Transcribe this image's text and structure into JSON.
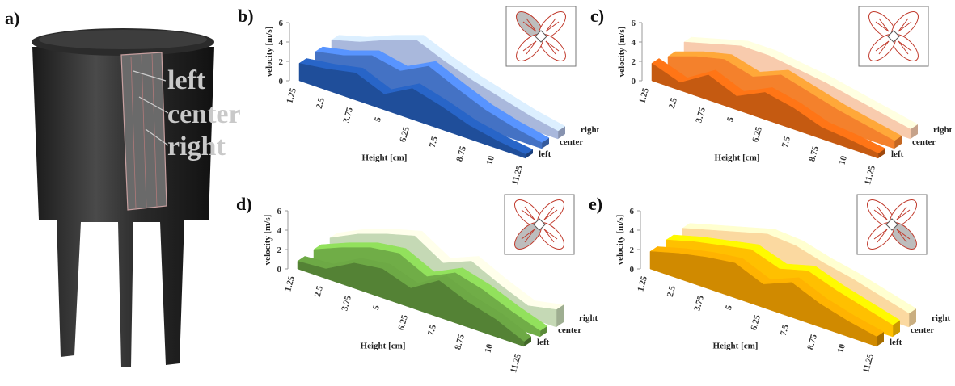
{
  "illustration": {
    "label": "a)",
    "callouts": [
      "left",
      "center",
      "right"
    ]
  },
  "chart_data": [
    {
      "type": "ribbon",
      "title": "b)",
      "ylabel": "velocity [m/s]",
      "xlabel": "Height [cm]",
      "categories": [
        "1.25",
        "2.5",
        "3.75",
        "5",
        "6.25",
        "7.5",
        "8.75",
        "10",
        "11.25"
      ],
      "ylim": [
        0,
        6
      ],
      "yticks": [
        0,
        2,
        4,
        6
      ],
      "series": [
        {
          "name": "left",
          "color": "#1f4e9a",
          "values": [
            1.8,
            2.2,
            2.8,
            1.6,
            3.2,
            2.4,
            1.4,
            0.8,
            0.4
          ]
        },
        {
          "name": "center",
          "color": "#4472c4",
          "values": [
            2.0,
            2.6,
            3.6,
            3.0,
            4.5,
            3.2,
            2.0,
            1.2,
            0.6
          ]
        },
        {
          "name": "right",
          "color": "#a9b8dc",
          "values": [
            2.2,
            3.0,
            4.2,
            5.2,
            4.0,
            3.0,
            2.2,
            1.4,
            0.8
          ]
        }
      ]
    },
    {
      "type": "ribbon",
      "title": "c)",
      "ylabel": "velocity [m/s]",
      "xlabel": "Height [cm]",
      "categories": [
        "1.25",
        "2.5",
        "3.75",
        "5",
        "6.25",
        "7.5",
        "8.75",
        "10",
        "11.25"
      ],
      "ylim": [
        0,
        6
      ],
      "yticks": [
        0,
        2,
        4,
        6
      ],
      "series": [
        {
          "name": "left",
          "color": "#c55a11",
          "values": [
            1.8,
            0.8,
            2.6,
            1.4,
            2.8,
            2.2,
            1.2,
            0.9,
            0.5
          ]
        },
        {
          "name": "center",
          "color": "#f4812c",
          "values": [
            1.5,
            2.5,
            3.2,
            2.4,
            3.6,
            2.8,
            2.0,
            1.4,
            0.8
          ]
        },
        {
          "name": "right",
          "color": "#f8cbad",
          "values": [
            2.0,
            2.8,
            3.6,
            3.6,
            3.2,
            2.8,
            2.2,
            1.6,
            1.0
          ]
        }
      ]
    },
    {
      "type": "ribbon",
      "title": "d)",
      "ylabel": "velocity [m/s]",
      "xlabel": "Height [cm]",
      "categories": [
        "1.25",
        "2.5",
        "3.75",
        "5",
        "6.25",
        "7.5",
        "8.75",
        "10",
        "11.25"
      ],
      "ylim": [
        0,
        6
      ],
      "yticks": [
        0,
        2,
        4,
        6
      ],
      "series": [
        {
          "name": "left",
          "color": "#548235",
          "values": [
            0.8,
            1.0,
            2.6,
            3.0,
            2.0,
            3.8,
            2.6,
            1.8,
            0.5
          ]
        },
        {
          "name": "center",
          "color": "#70ad47",
          "values": [
            1.0,
            2.2,
            3.2,
            3.6,
            2.2,
            3.6,
            2.8,
            1.6,
            0.6
          ]
        },
        {
          "name": "right",
          "color": "#c5d9b5",
          "values": [
            1.2,
            2.6,
            3.6,
            4.4,
            2.6,
            3.8,
            2.4,
            1.2,
            1.8
          ]
        }
      ]
    },
    {
      "type": "ribbon",
      "title": "e)",
      "ylabel": "velocity [m/s]",
      "xlabel": "Height [cm]",
      "categories": [
        "1.25",
        "2.5",
        "3.75",
        "5",
        "6.25",
        "7.5",
        "8.75",
        "10",
        "11.25"
      ],
      "ylim": [
        0,
        6
      ],
      "yticks": [
        0,
        2,
        4,
        6
      ],
      "series": [
        {
          "name": "left",
          "color": "#d08a00",
          "values": [
            1.8,
            2.6,
            3.2,
            3.6,
            2.4,
            3.6,
            2.4,
            1.6,
            1.0
          ]
        },
        {
          "name": "center",
          "color": "#ffc000",
          "values": [
            2.0,
            2.8,
            3.4,
            4.0,
            3.0,
            3.8,
            2.8,
            2.0,
            1.2
          ]
        },
        {
          "name": "right",
          "color": "#fbd9a0",
          "values": [
            2.2,
            3.0,
            3.8,
            4.6,
            4.4,
            3.6,
            3.0,
            2.2,
            1.4
          ]
        }
      ]
    }
  ]
}
